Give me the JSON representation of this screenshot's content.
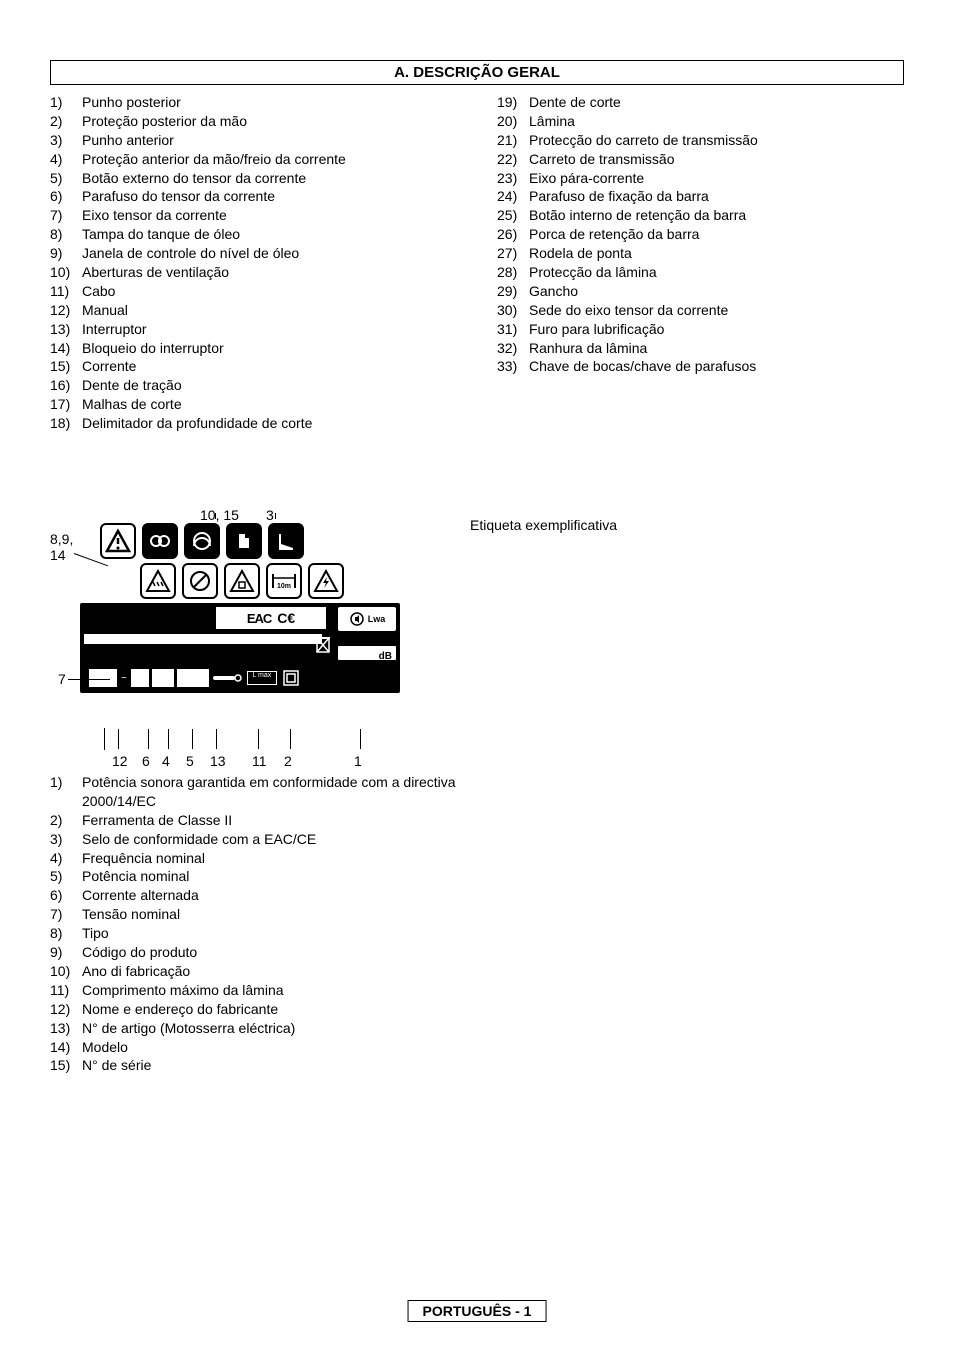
{
  "header": "A. DESCRIÇÃO GERAL",
  "parts_left": [
    {
      "n": "1)",
      "t": "Punho posterior"
    },
    {
      "n": "2)",
      "t": "Proteção posterior da mão"
    },
    {
      "n": "3)",
      "t": "Punho anterior"
    },
    {
      "n": "4)",
      "t": "Proteção anterior da mão/freio da corrente"
    },
    {
      "n": "5)",
      "t": "Botão externo do tensor da corrente"
    },
    {
      "n": "6)",
      "t": "Parafuso do tensor da corrente"
    },
    {
      "n": "7)",
      "t": "Eixo tensor da corrente"
    },
    {
      "n": "8)",
      "t": "Tampa do tanque de óleo"
    },
    {
      "n": "9)",
      "t": "Janela de controle do nível de óleo"
    },
    {
      "n": "10)",
      "t": "Aberturas de ventilação"
    },
    {
      "n": "11)",
      "t": "Cabo"
    },
    {
      "n": "12)",
      "t": "Manual"
    },
    {
      "n": "13)",
      "t": "Interruptor"
    },
    {
      "n": "14)",
      "t": "Bloqueio do interruptor"
    },
    {
      "n": "15)",
      "t": "Corrente"
    },
    {
      "n": "16)",
      "t": "Dente de tração"
    },
    {
      "n": "17)",
      "t": "Malhas de corte"
    },
    {
      "n": "18)",
      "t": "Delimitador da profundidade de corte"
    }
  ],
  "parts_right": [
    {
      "n": "19)",
      "t": "Dente de corte"
    },
    {
      "n": "20)",
      "t": "Lâmina"
    },
    {
      "n": "21)",
      "t": "Protecção do carreto de transmissão"
    },
    {
      "n": "22)",
      "t": "Carreto de transmissão"
    },
    {
      "n": "23)",
      "t": "Eixo pára-corrente"
    },
    {
      "n": "24)",
      "t": "Parafuso de fixação da barra"
    },
    {
      "n": "25)",
      "t": "Botão interno de retenção da barra"
    },
    {
      "n": "26)",
      "t": "Porca de retenção da barra"
    },
    {
      "n": "27)",
      "t": "Rodela de ponta"
    },
    {
      "n": "28)",
      "t": "Protecção da lâmina"
    },
    {
      "n": "29)",
      "t": "Gancho"
    },
    {
      "n": "30)",
      "t": "Sede do eixo tensor da corrente"
    },
    {
      "n": "31)",
      "t": "Furo para lubrificação"
    },
    {
      "n": "32)",
      "t": "Ranhura da lâmina"
    },
    {
      "n": "33)",
      "t": "Chave de bocas/chave de parafusos"
    }
  ],
  "diagram_caption": "Etiqueta exemplificativa",
  "diagram_callouts": {
    "top1": "10, 15",
    "top2": "3",
    "left_top": "8,9,\n14",
    "left_mid": "7",
    "bottom": [
      "12",
      "6",
      "4",
      "5",
      "13",
      "11",
      "2",
      "1"
    ]
  },
  "label_list": [
    {
      "n": "1)",
      "t": "Potência sonora garantida em conformidade com a directiva 2000/14/EC"
    },
    {
      "n": "2)",
      "t": "Ferramenta de Classe II"
    },
    {
      "n": "3)",
      "t": "Selo de conformidade com a EAC/CE"
    },
    {
      "n": "4)",
      "t": "Frequência nominal"
    },
    {
      "n": "5)",
      "t": "Potência nominal"
    },
    {
      "n": "6)",
      "t": "Corrente alternada"
    },
    {
      "n": "7)",
      "t": "Tensão nominal"
    },
    {
      "n": "8)",
      "t": "Tipo"
    },
    {
      "n": "9)",
      "t": "Código do produto"
    },
    {
      "n": "10)",
      "t": "Ano di fabricação"
    },
    {
      "n": "11)",
      "t": "Comprimento máximo da lâmina"
    },
    {
      "n": "12)",
      "t": "Nome e endereço do fabricante"
    },
    {
      "n": "13)",
      "t": "N° de artigo (Motosserra eléctrica)"
    },
    {
      "n": "14)",
      "t": "Modelo"
    },
    {
      "n": "15)",
      "t": "N° de série"
    }
  ],
  "footer": "PORTUGUÊS - 1",
  "colors": {
    "text": "#000000",
    "bg": "#ffffff"
  }
}
